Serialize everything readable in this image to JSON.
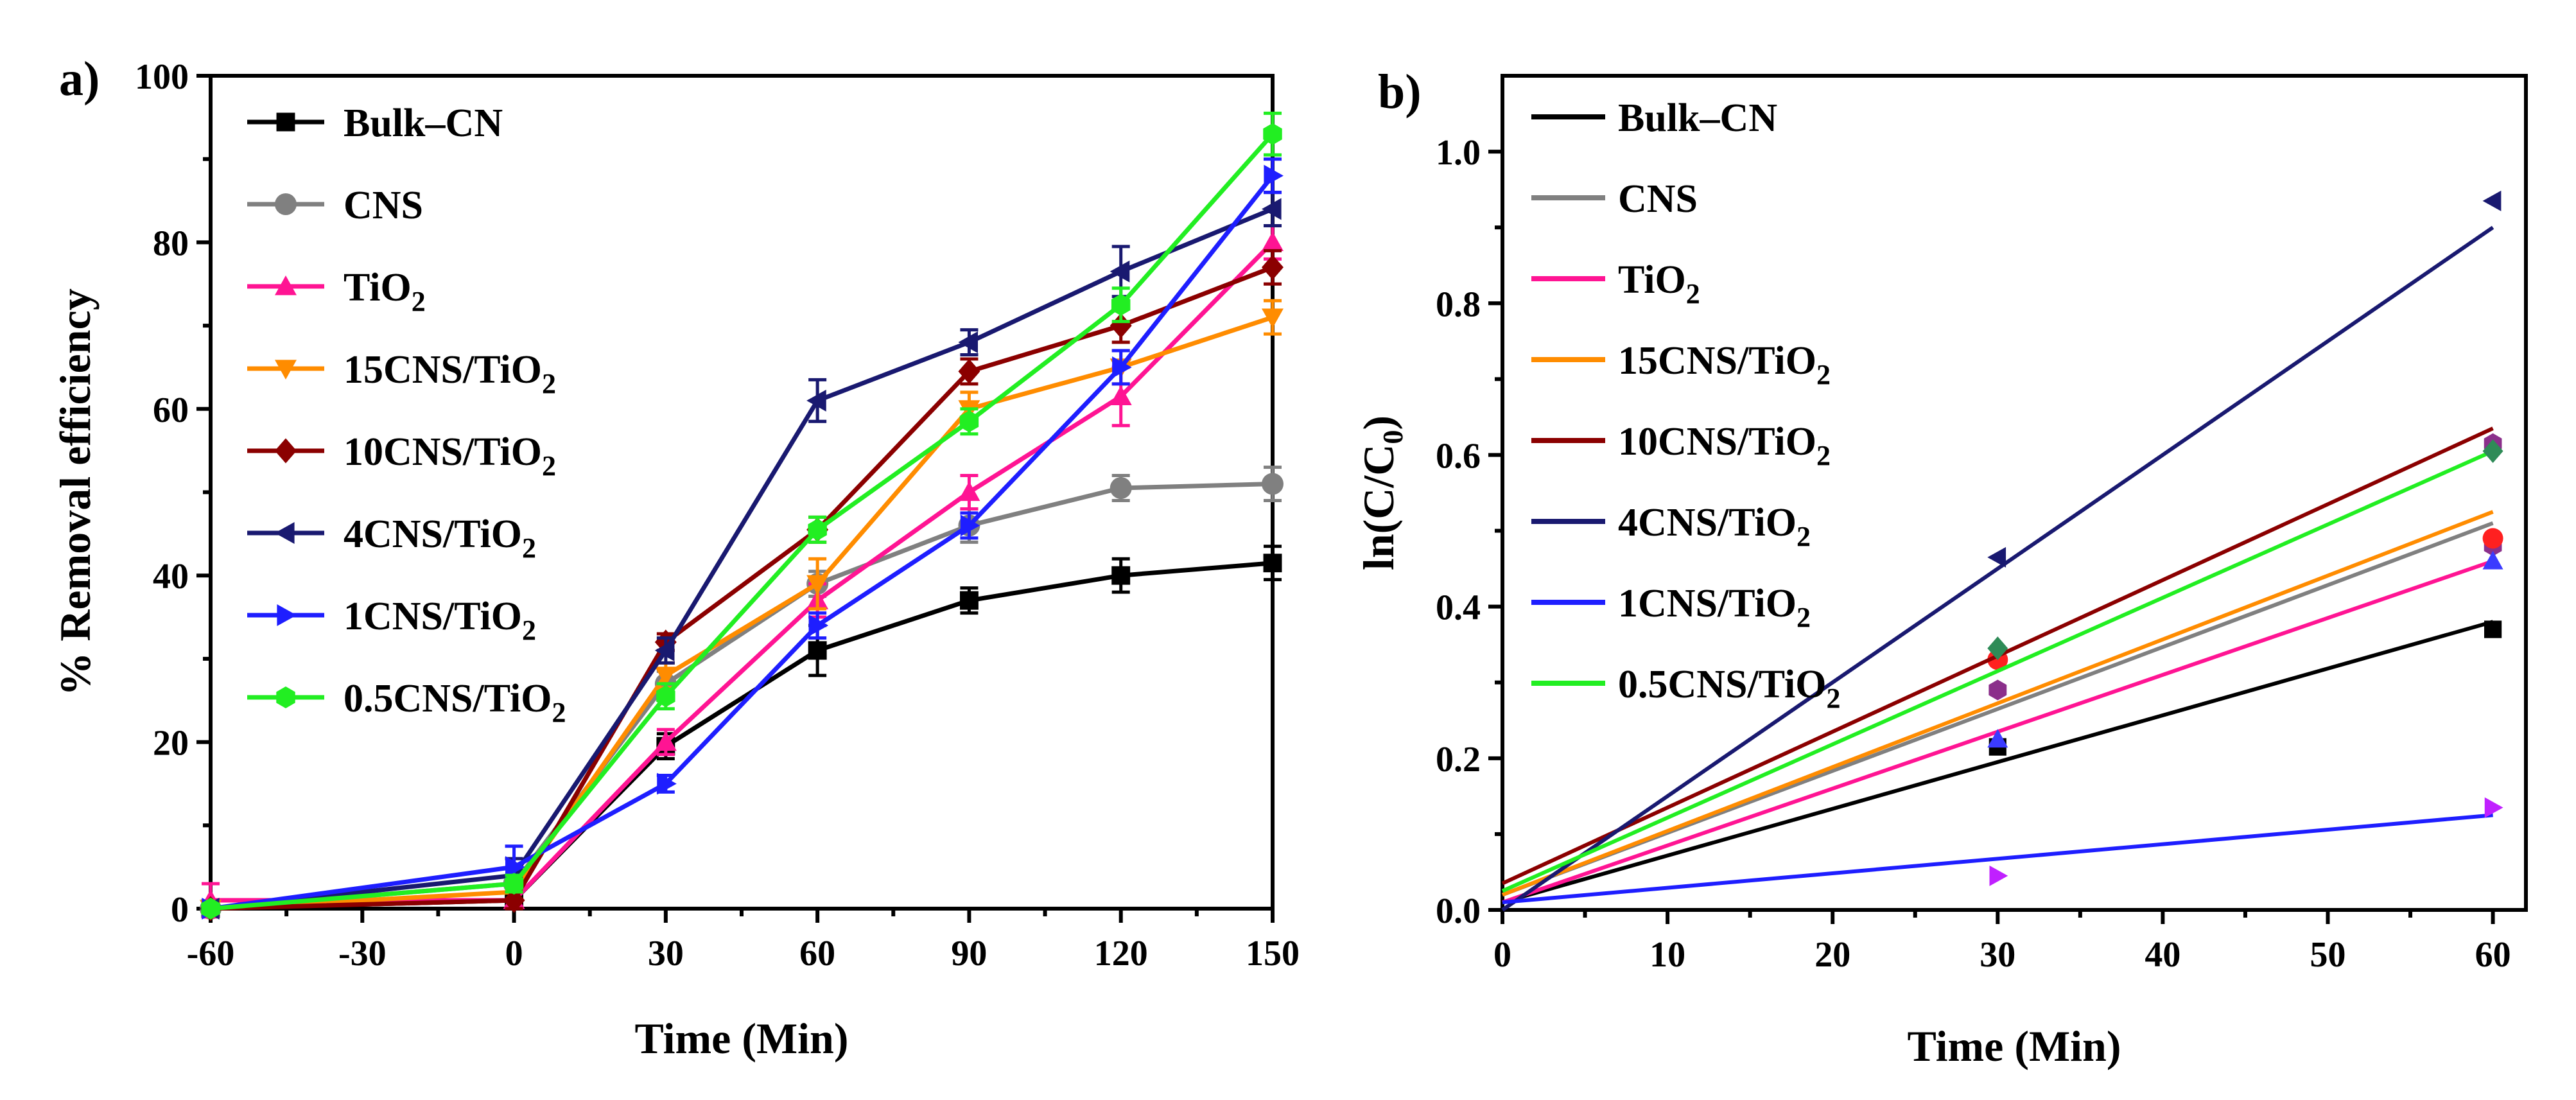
{
  "chart_data": [
    {
      "panel_label": "a)",
      "type": "line",
      "xlabel": "Time (Min)",
      "ylabel": "% Removal efficiency",
      "xlim": [
        -60,
        150
      ],
      "ylim": [
        0,
        100
      ],
      "xticks": [
        -60,
        -30,
        0,
        30,
        60,
        90,
        120,
        150
      ],
      "xtick_labels": [
        "-60",
        "-30",
        "0",
        "30",
        "60",
        "90",
        "120",
        "150"
      ],
      "yticks": [
        0,
        20,
        40,
        60,
        80,
        100
      ],
      "ytick_labels": [
        "0",
        "20",
        "40",
        "60",
        "80",
        "100"
      ],
      "legend_position": "top-left",
      "series": [
        {
          "name": "Bulk–CN",
          "base": "Bulk–CN",
          "sub": "",
          "color": "#000000",
          "marker": "square",
          "x": [
            -60,
            0,
            30,
            60,
            90,
            120,
            150
          ],
          "values": [
            0,
            1,
            19.5,
            31,
            37,
            40,
            41.5
          ],
          "errors": [
            0,
            1,
            1.5,
            3,
            1.5,
            2,
            2
          ]
        },
        {
          "name": "CNS",
          "base": "CNS",
          "sub": "",
          "color": "#808080",
          "marker": "circle",
          "x": [
            -60,
            0,
            30,
            60,
            90,
            120,
            150
          ],
          "values": [
            0,
            3,
            27,
            39,
            46,
            50.5,
            51
          ],
          "errors": [
            0,
            1,
            1.5,
            1.5,
            2,
            1.5,
            2
          ]
        },
        {
          "name": "TiO2",
          "base": "TiO",
          "sub": "2",
          "color": "#ff1493",
          "marker": "triangle-up",
          "x": [
            -60,
            0,
            30,
            60,
            90,
            120,
            150
          ],
          "values": [
            1,
            1,
            20,
            37,
            50,
            61.5,
            80
          ],
          "errors": [
            2,
            1,
            1.5,
            2,
            2,
            3.5,
            2
          ]
        },
        {
          "name": "15CNS/TiO2",
          "base": "15CNS/TiO",
          "sub": "2",
          "color": "#ff8c00",
          "marker": "triangle-down",
          "x": [
            -60,
            0,
            30,
            60,
            90,
            120,
            150
          ],
          "values": [
            0,
            2,
            28,
            39,
            60,
            65,
            71
          ],
          "errors": [
            0,
            1,
            1.5,
            3,
            2,
            2,
            2
          ]
        },
        {
          "name": "10CNS/TiO2",
          "base": "10CNS/TiO",
          "sub": "2",
          "color": "#8b0000",
          "marker": "diamond",
          "x": [
            -60,
            0,
            30,
            60,
            90,
            120,
            150
          ],
          "values": [
            0,
            1,
            32,
            45.5,
            64.5,
            70,
            77
          ],
          "errors": [
            0,
            1,
            1,
            1.5,
            1.5,
            2,
            2
          ]
        },
        {
          "name": "4CNS/TiO2",
          "base": "4CNS/TiO",
          "sub": "2",
          "color": "#191970",
          "marker": "triangle-left",
          "x": [
            -60,
            0,
            30,
            60,
            90,
            120,
            150
          ],
          "values": [
            0,
            4,
            31,
            61,
            68,
            76.5,
            84
          ],
          "errors": [
            0,
            2,
            1.5,
            2.5,
            1.5,
            3,
            2
          ]
        },
        {
          "name": "1CNS/TiO2",
          "base": "1CNS/TiO",
          "sub": "2",
          "color": "#1e1eff",
          "marker": "triangle-right",
          "x": [
            -60,
            0,
            30,
            60,
            90,
            120,
            150
          ],
          "values": [
            0,
            5,
            15,
            34,
            46,
            65,
            88
          ],
          "errors": [
            0,
            2.5,
            1,
            1.5,
            1.5,
            2,
            2
          ]
        },
        {
          "name": "0.5CNS/TiO2",
          "base": "0.5CNS/TiO",
          "sub": "2",
          "color": "#22ee22",
          "marker": "hexagon",
          "x": [
            -60,
            0,
            30,
            60,
            90,
            120,
            150
          ],
          "values": [
            0,
            3,
            25.5,
            45.5,
            58.5,
            72.5,
            93
          ],
          "errors": [
            0,
            1,
            1.5,
            1.5,
            1.5,
            2,
            2.5
          ]
        }
      ]
    },
    {
      "panel_label": "b)",
      "type": "scatter",
      "xlabel": "Time (Min)",
      "ylabel_base": "ln(C/C",
      "ylabel_sub": "0",
      "ylabel_end": ")",
      "xlim": [
        0,
        62
      ],
      "ylim": [
        0,
        1.1
      ],
      "xticks": [
        0,
        10,
        20,
        30,
        40,
        50,
        60
      ],
      "xtick_labels": [
        "0",
        "10",
        "20",
        "30",
        "40",
        "50",
        "60"
      ],
      "yticks": [
        0,
        0.2,
        0.4,
        0.6,
        0.8,
        1.0
      ],
      "ytick_labels": [
        "0.0",
        "0.2",
        "0.4",
        "0.6",
        "0.8",
        "1.0"
      ],
      "legend_position": "top-left",
      "series": [
        {
          "name": "Bulk–CN",
          "base": "Bulk–CN",
          "sub": "",
          "color": "#000000",
          "marker": "square",
          "marker_color": "#000000",
          "x": [
            30,
            60
          ],
          "values": [
            0.215,
            0.37
          ],
          "fit": [
            0.01,
            0.38
          ]
        },
        {
          "name": "CNS",
          "base": "CNS",
          "sub": "",
          "color": "#808080",
          "marker": "hexagon",
          "marker_color": "#8b2f8b",
          "x": [
            30,
            60
          ],
          "values": [
            0.29,
            0.48
          ],
          "fit": [
            0.02,
            0.51
          ]
        },
        {
          "name": "TiO2",
          "base": "TiO",
          "sub": "2",
          "color": "#ff1493",
          "marker": "triangle-up",
          "marker_color": "#3b3bff",
          "x": [
            30,
            60
          ],
          "values": [
            0.225,
            0.46
          ],
          "fit": [
            0.01,
            0.46
          ]
        },
        {
          "name": "15CNS/TiO2",
          "base": "15CNS/TiO",
          "sub": "2",
          "color": "#ff8c00",
          "marker": "circle",
          "marker_color": "#ff2020",
          "x": [
            30,
            60
          ],
          "values": [
            0.33,
            0.49
          ],
          "fit": [
            0.02,
            0.525
          ]
        },
        {
          "name": "10CNS/TiO2",
          "base": "10CNS/TiO",
          "sub": "2",
          "color": "#8b0000",
          "marker": "hexagon",
          "marker_color": "#8b2f8b",
          "x": [
            30,
            60
          ],
          "values": [
            0.29,
            0.615
          ],
          "fit": [
            0.035,
            0.635
          ]
        },
        {
          "name": "4CNS/TiO2",
          "base": "4CNS/TiO",
          "sub": "2",
          "color": "#191970",
          "marker": "triangle-left",
          "marker_color": "#191970",
          "x": [
            30,
            60
          ],
          "values": [
            0.465,
            0.935
          ],
          "fit": [
            0.0,
            0.9
          ]
        },
        {
          "name": "1CNS/TiO2",
          "base": "1CNS/TiO",
          "sub": "2",
          "color": "#1e1eff",
          "marker": "triangle-right",
          "marker_color": "#c020ff",
          "x": [
            30,
            60
          ],
          "values": [
            0.045,
            0.135
          ],
          "fit": [
            0.01,
            0.125
          ]
        },
        {
          "name": "0.5CNS/TiO2",
          "base": "0.5CNS/TiO",
          "sub": "2",
          "color": "#22ee22",
          "marker": "diamond",
          "marker_color": "#2e8b57",
          "x": [
            30,
            60
          ],
          "values": [
            0.345,
            0.605
          ],
          "fit": [
            0.025,
            0.605
          ]
        }
      ]
    }
  ]
}
